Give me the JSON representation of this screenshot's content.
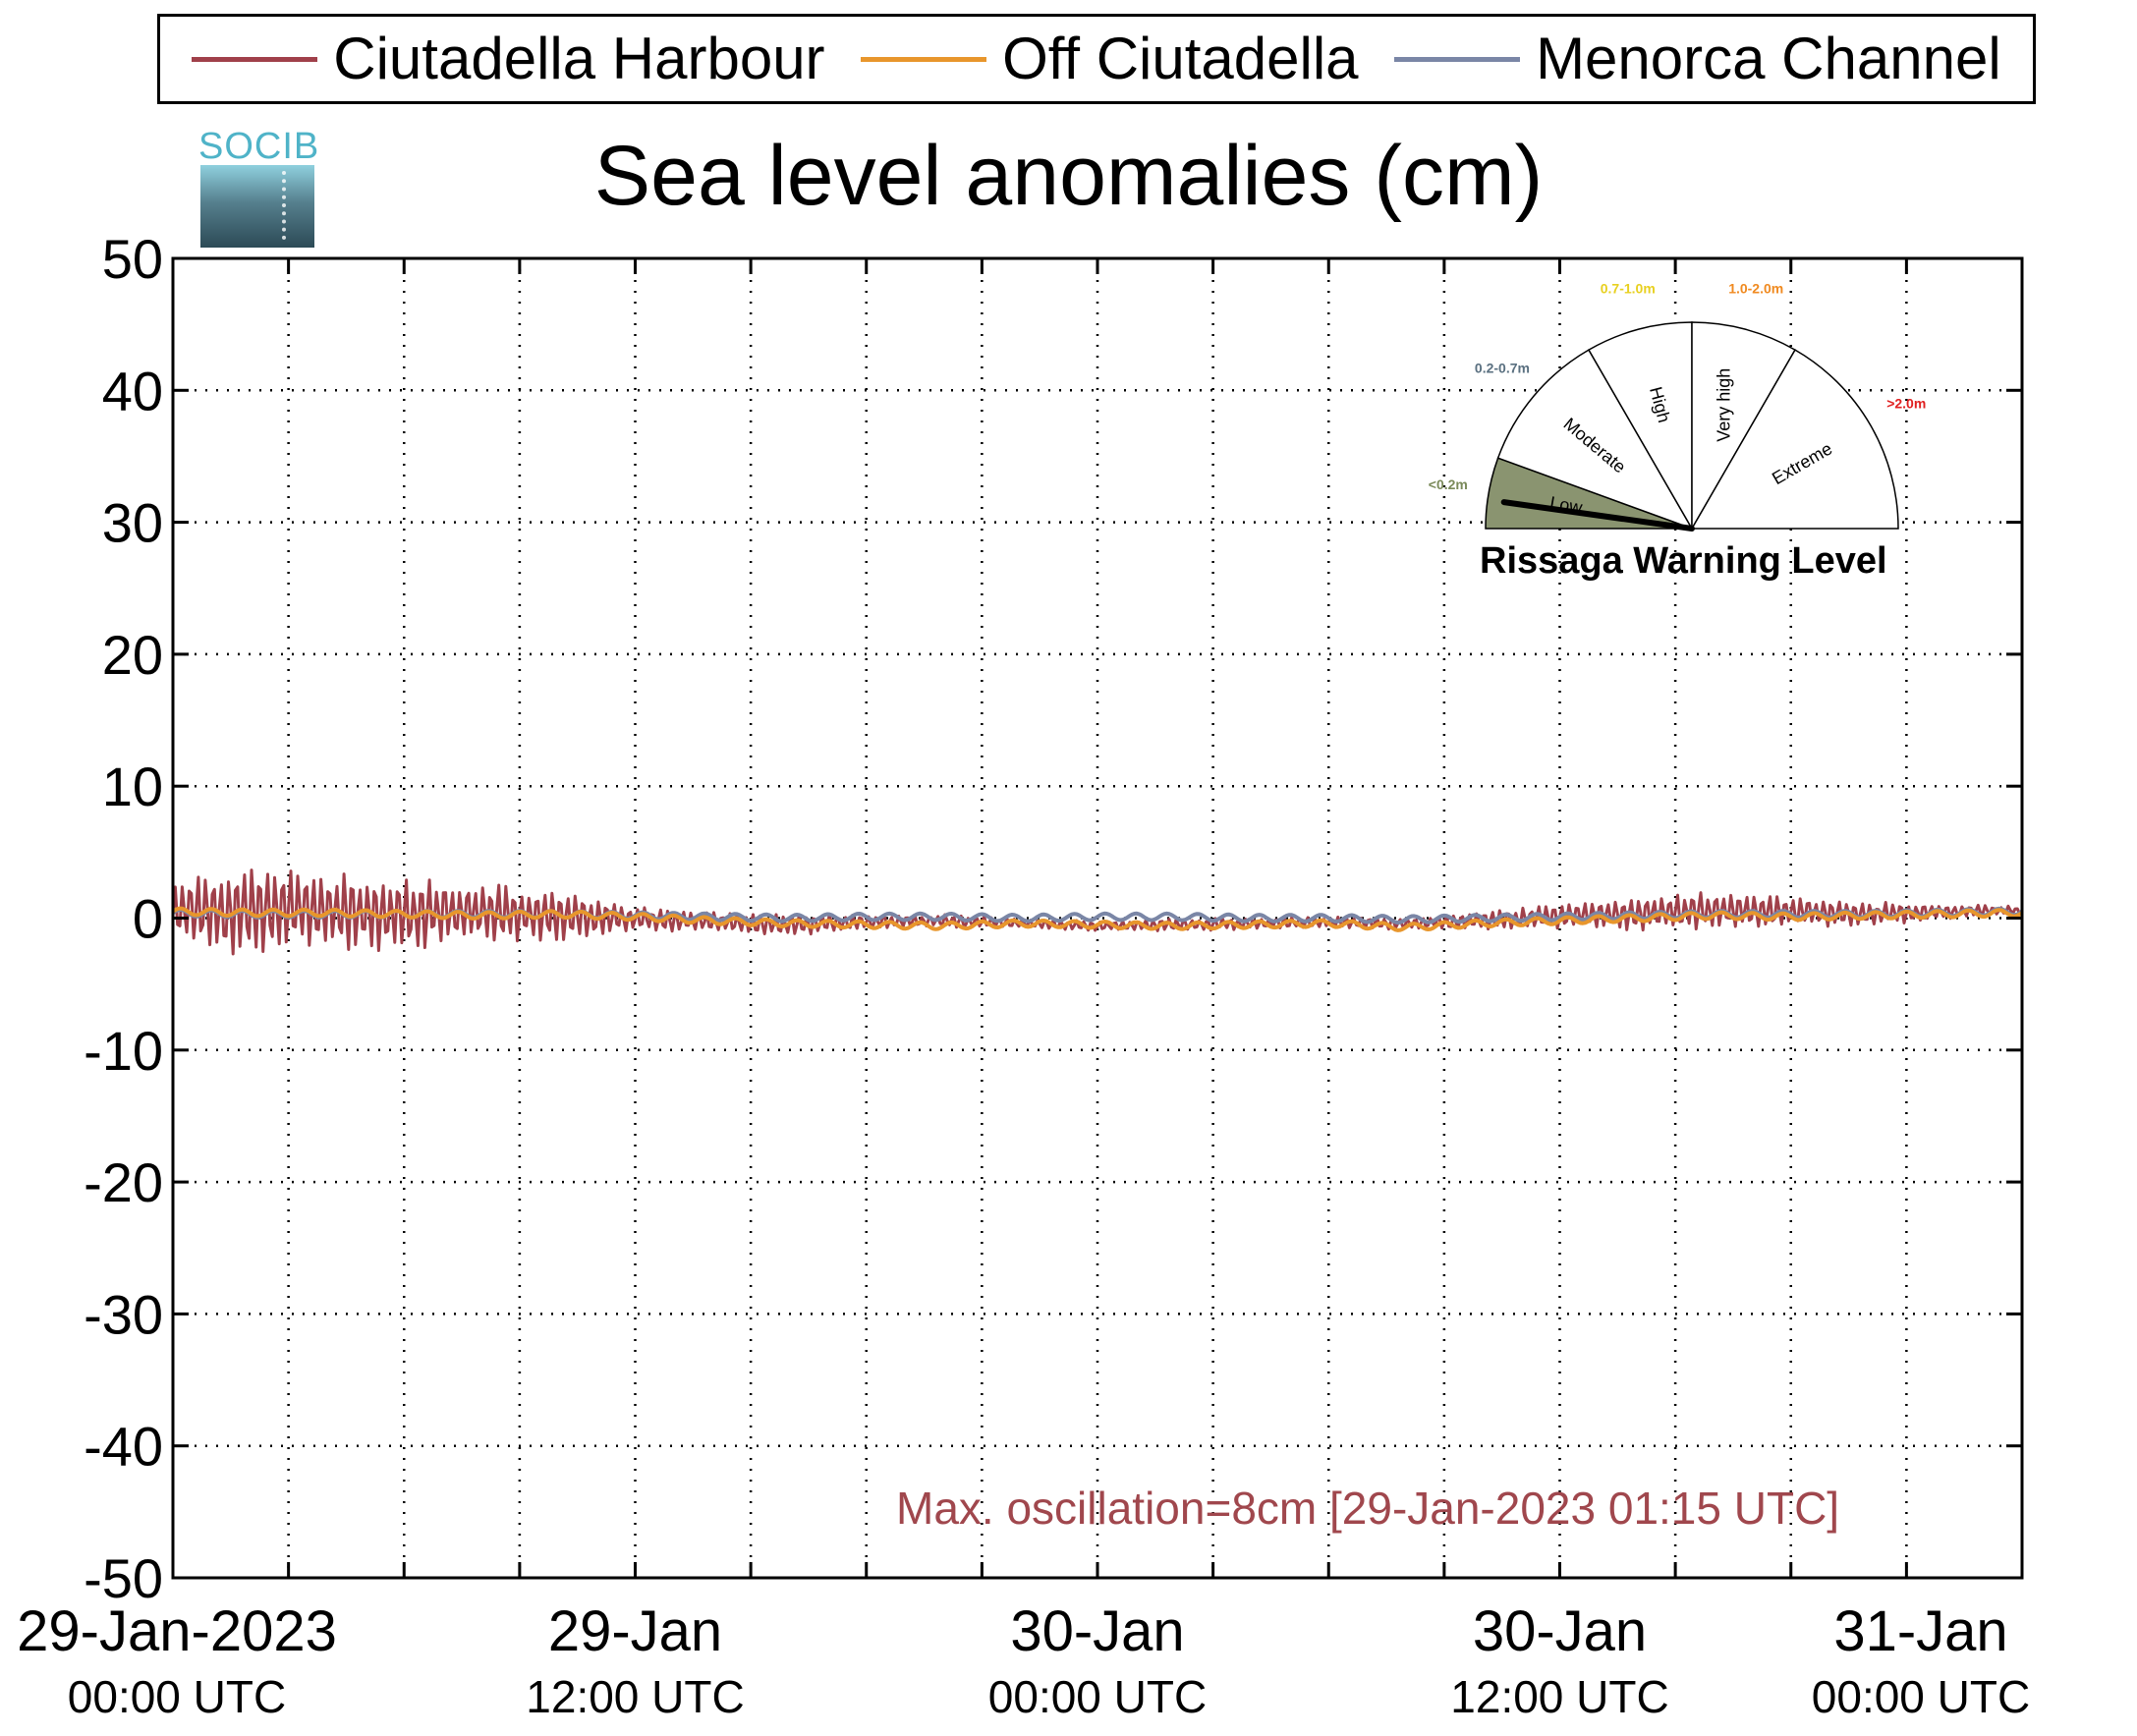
{
  "legend": {
    "entries": [
      {
        "label": "Ciutadella Harbour",
        "color": "#a0404a"
      },
      {
        "label": "Off Ciutadella",
        "color": "#e8962c"
      },
      {
        "label": "Menorca Channel",
        "color": "#7a86a6"
      }
    ]
  },
  "logo": {
    "text": "SOCIB"
  },
  "annotation": "Max. oscillation=8cm [29-Jan-2023 01:15 UTC]",
  "gauge": {
    "title": "Rissaga Warning Level",
    "current_level": "Low",
    "sectors": [
      {
        "name": "Low",
        "range": "<0.2m",
        "range_color": "#7a8a5a",
        "fill": "#8a9470"
      },
      {
        "name": "Moderate",
        "range": "0.2-0.7m",
        "range_color": "#5a7080",
        "fill": "#ffffff"
      },
      {
        "name": "High",
        "range": "0.7-1.0m",
        "range_color": "#e8d020",
        "fill": "#ffffff"
      },
      {
        "name": "Very high",
        "range": "1.0-2.0m",
        "range_color": "#f08a20",
        "fill": "#ffffff"
      },
      {
        "name": "Extreme",
        "range": ">2.0m",
        "range_color": "#e02020",
        "fill": "#ffffff"
      }
    ]
  },
  "chart_data": {
    "type": "line",
    "title": "Sea level anomalies (cm)",
    "xlabel": "",
    "ylabel": "",
    "ylim": [
      -50,
      50
    ],
    "yticks": [
      50,
      40,
      30,
      20,
      10,
      0,
      -10,
      -20,
      -30,
      -40,
      -50
    ],
    "xlim": [
      "2023-01-29T00:00Z",
      "2023-01-31T00:00Z"
    ],
    "xticks": [
      {
        "line1": "29-Jan-2023",
        "line2": "00:00 UTC"
      },
      {
        "line1": "29-Jan",
        "line2": "12:00 UTC"
      },
      {
        "line1": "30-Jan",
        "line2": "00:00 UTC"
      },
      {
        "line1": "30-Jan",
        "line2": "12:00 UTC"
      },
      {
        "line1": "31-Jan",
        "line2": "00:00 UTC"
      }
    ],
    "grid": true,
    "legend_position": "top",
    "x_hours": [
      0,
      2,
      4,
      6,
      8,
      10,
      12,
      14,
      16,
      18,
      20,
      22,
      24,
      26,
      28,
      30,
      32,
      34,
      36,
      38,
      40,
      42,
      44,
      46,
      48
    ],
    "series": [
      {
        "name": "Ciutadella Harbour",
        "color": "#a0404a",
        "values": [
          0.4,
          0.8,
          0.6,
          0.3,
          0.5,
          0.2,
          -0.1,
          -0.3,
          -0.5,
          -0.3,
          -0.2,
          -0.4,
          -0.6,
          -0.5,
          -0.4,
          -0.3,
          -0.4,
          -0.2,
          0.1,
          0.4,
          0.6,
          0.5,
          0.3,
          0.5,
          0.6
        ],
        "oscillation_amplitude": [
          2.5,
          4.0,
          3.2,
          3.0,
          2.6,
          2.0,
          1.0,
          0.8,
          0.9,
          0.6,
          0.5,
          0.4,
          0.4,
          0.5,
          0.5,
          0.4,
          0.5,
          0.7,
          1.0,
          1.4,
          1.5,
          1.2,
          1.0,
          0.6,
          0.3
        ]
      },
      {
        "name": "Off Ciutadella",
        "color": "#e8962c",
        "values": [
          0.5,
          0.4,
          0.4,
          0.3,
          0.2,
          0.3,
          0.1,
          -0.2,
          -0.4,
          -0.5,
          -0.6,
          -0.4,
          -0.5,
          -0.6,
          -0.5,
          -0.4,
          -0.7,
          -0.4,
          -0.2,
          0.0,
          0.2,
          0.1,
          0.2,
          0.3,
          0.4
        ]
      },
      {
        "name": "Menorca Channel",
        "color": "#7a86a6",
        "values": [
          0.4,
          0.3,
          0.3,
          0.3,
          0.3,
          0.3,
          0.2,
          0.1,
          0.0,
          0.1,
          0.1,
          0.0,
          0.1,
          0.1,
          0.0,
          0.0,
          -0.1,
          0.0,
          0.1,
          0.2,
          0.3,
          0.3,
          0.3,
          0.4,
          0.5
        ]
      }
    ]
  }
}
